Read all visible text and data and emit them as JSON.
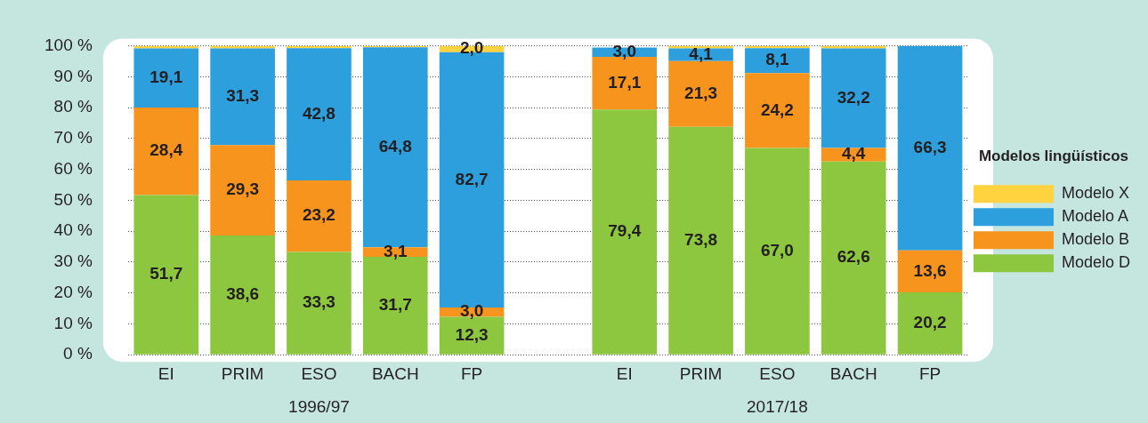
{
  "chart_data": {
    "type": "bar",
    "stacked": true,
    "categories": [
      "EI",
      "PRIM",
      "ESO",
      "BACH",
      "FP",
      null,
      "EI",
      "PRIM",
      "ESO",
      "BACH",
      "FP"
    ],
    "series": [
      {
        "name": "Modelo D",
        "color": "#8dc63f",
        "values": [
          51.7,
          38.6,
          33.3,
          31.7,
          12.3,
          null,
          79.4,
          73.8,
          67.0,
          62.6,
          20.2
        ],
        "value_labels": [
          "51,7",
          "38,6",
          "33,3",
          "31,7",
          "12,3",
          null,
          "79,4",
          "73,8",
          "67,0",
          "62,6",
          "20,2"
        ]
      },
      {
        "name": "Modelo B",
        "color": "#f7941d",
        "values": [
          28.4,
          29.3,
          23.2,
          3.1,
          3.0,
          null,
          17.1,
          21.3,
          24.2,
          4.4,
          13.6
        ],
        "value_labels": [
          "28,4",
          "29,3",
          "23,2",
          "3,1",
          "3,0",
          null,
          "17,1",
          "21,3",
          "24,2",
          "4,4",
          "13,6"
        ]
      },
      {
        "name": "Modelo A",
        "color": "#2c9fdc",
        "values": [
          19.1,
          31.3,
          42.8,
          64.8,
          82.7,
          null,
          3.0,
          4.1,
          8.1,
          32.2,
          66.3
        ],
        "value_labels": [
          "19,1",
          "31,3",
          "42,8",
          "64,8",
          "82,7",
          null,
          "3,0",
          "4,1",
          "8,1",
          "32,2",
          "66,3"
        ]
      },
      {
        "name": "Modelo X",
        "color": "#ffd23f",
        "values": [
          0.8,
          0.8,
          0.7,
          0.4,
          2.0,
          null,
          null,
          0.8,
          0.7,
          0.8,
          0
        ],
        "value_labels": [
          null,
          null,
          null,
          null,
          "2,0",
          null,
          null,
          null,
          null,
          null,
          null
        ]
      }
    ],
    "ylim": [
      0,
      100.1
    ],
    "yticks": [
      {
        "value": 0,
        "label": "0 %"
      },
      {
        "value": 10,
        "label": "10 %"
      },
      {
        "value": 20,
        "label": "20 %"
      },
      {
        "value": 30,
        "label": "30 %"
      },
      {
        "value": 40,
        "label": "40 %"
      },
      {
        "value": 50,
        "label": "50 %"
      },
      {
        "value": 60,
        "label": "60 %"
      },
      {
        "value": 70,
        "label": "70 %"
      },
      {
        "value": 80,
        "label": "80 %"
      },
      {
        "value": 90,
        "label": "90 %"
      },
      {
        "value": 100,
        "label": "100 %"
      }
    ],
    "grid": "y",
    "legend": "right",
    "legend_title": "Modelos lingüísticos",
    "annotations": [
      "1996/97",
      "2017/18"
    ]
  }
}
